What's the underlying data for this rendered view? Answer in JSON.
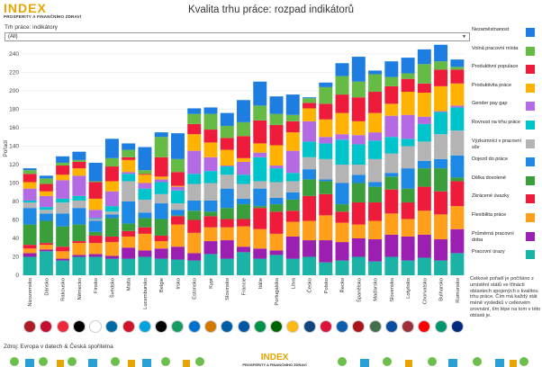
{
  "brand": {
    "logo_word": "INDEX",
    "logo_sub": "PROSPERITY A FINANČNÍHO ZDRAVÍ"
  },
  "title": "Kvalita trhu práce: rozpad indikátorů",
  "filter": {
    "label": "Trh práce: indikátory",
    "value": "(All)"
  },
  "source": "Zdroj: Evropa v datech & Česká spořitelna",
  "note": "Celkové pořadí je počítáno z umístění států ve třinácti oblastech spojených s kvalitou trhu práce. Čím má každý stát méně výsledků v celkovém srovnání, tím lépe na tom v této oblasti je.",
  "icons": {
    "logo": "index-logo",
    "dropdown": "chevron-down-icon",
    "footer_deco": "trees-and-houses-decoration"
  },
  "legend_layout_order": [
    "Nezaměstnanost",
    "Volná pracovní místa",
    "Produktivní populace",
    "Produktivita práce",
    "Gender pay gap",
    "Rovnost na trhu práce",
    "Výzkumníci v pracovní síle",
    "Dojezd do práce",
    "Délka dovolené",
    "Zkrácené úvazky",
    "Flexibilita práce",
    "Průměrná pracovní doba",
    "Pracovní úrazy"
  ],
  "chart_data": {
    "type": "bar",
    "stacked": true,
    "ylabel": "Pořadí",
    "ylim": [
      0,
      240
    ],
    "yticks": [
      0,
      20,
      40,
      60,
      80,
      100,
      120,
      140,
      160,
      180,
      200,
      220,
      240
    ],
    "grid": true,
    "legend_position": "right",
    "categories": [
      "Nizozemsko",
      "Dánsko",
      "Rakousko",
      "Německo",
      "Finsko",
      "Švédsko",
      "Malta",
      "Lucembursko",
      "Belgie",
      "Irsko",
      "Estonsko",
      "Kypr",
      "Slovinsko",
      "Francie",
      "Itálie",
      "Portugalsko",
      "Litva",
      "Česko",
      "Polsko",
      "Řecko",
      "Španělsko",
      "Maďarsko",
      "Slovensko",
      "Lotyšsko",
      "Chorvatsko",
      "Bulharsko",
      "Rumunsko"
    ],
    "series": [
      {
        "name": "Pracovní úrazy",
        "color": "#1ab3a6",
        "values": [
          20,
          26,
          16,
          20,
          20,
          18,
          18,
          20,
          18,
          17,
          16,
          23,
          18,
          25,
          18,
          22,
          18,
          20,
          14,
          16,
          20,
          15,
          20,
          16,
          19,
          16,
          24
        ]
      },
      {
        "name": "Průměrná pracovní doba",
        "color": "#9b1fb1",
        "values": [
          4,
          2,
          2,
          2,
          3,
          3,
          12,
          7,
          11,
          14,
          8,
          14,
          20,
          6,
          11,
          5,
          24,
          18,
          24,
          20,
          20,
          24,
          24,
          26,
          25,
          23,
          26
        ]
      },
      {
        "name": "Flexibilita práce",
        "color": "#ff9f1a",
        "values": [
          5,
          5,
          8,
          13,
          12,
          15,
          12,
          18,
          8,
          24,
          22,
          15,
          14,
          22,
          21,
          18,
          16,
          21,
          27,
          21,
          15,
          20,
          23,
          19,
          26,
          27,
          25
        ]
      },
      {
        "name": "Zkrácené úvazky",
        "color": "#ee1c3a",
        "values": [
          4,
          2,
          5,
          2,
          8,
          6,
          6,
          7,
          6,
          9,
          14,
          12,
          9,
          8,
          23,
          24,
          12,
          27,
          23,
          12,
          24,
          20,
          26,
          18,
          26,
          25,
          27
        ]
      },
      {
        "name": "Délka dovolené",
        "color": "#3a9f3b",
        "values": [
          22,
          24,
          22,
          18,
          4,
          20,
          8,
          10,
          18,
          1,
          10,
          5,
          12,
          16,
          2,
          8,
          12,
          18,
          14,
          8,
          21,
          17,
          14,
          15,
          20,
          25,
          4
        ]
      },
      {
        "name": "Dojezd do práce",
        "color": "#1e88e5",
        "values": [
          18,
          8,
          14,
          18,
          12,
          4,
          24,
          6,
          17,
          6,
          11,
          12,
          21,
          6,
          19,
          7,
          8,
          11,
          2,
          23,
          9,
          5,
          4,
          22,
          8,
          10,
          24
        ]
      },
      {
        "name": "Výzkumníci v pracovní síle",
        "color": "#b4b4b4",
        "values": [
          6,
          4,
          12,
          8,
          2,
          3,
          22,
          14,
          10,
          7,
          18,
          19,
          15,
          16,
          8,
          17,
          12,
          13,
          22,
          20,
          11,
          25,
          21,
          24,
          21,
          27,
          27
        ]
      },
      {
        "name": "Rovnost na trhu práce",
        "color": "#00c4cc",
        "values": [
          2,
          3,
          4,
          5,
          1,
          6,
          8,
          12,
          13,
          14,
          11,
          13,
          9,
          10,
          26,
          15,
          9,
          17,
          17,
          27,
          22,
          20,
          18,
          8,
          19,
          24,
          25
        ]
      },
      {
        "name": "Gender pay gap",
        "color": "#b36ae2",
        "values": [
          13,
          12,
          20,
          22,
          9,
          16,
          2,
          6,
          3,
          4,
          25,
          15,
          1,
          14,
          5,
          3,
          24,
          22,
          7,
          6,
          10,
          9,
          23,
          26,
          8,
          1,
          2
        ]
      },
      {
        "name": "Produktivita práce",
        "color": "#ffb300",
        "values": [
          7,
          5,
          6,
          8,
          12,
          11,
          13,
          9,
          3,
          1,
          18,
          16,
          17,
          4,
          10,
          22,
          20,
          14,
          19,
          23,
          15,
          21,
          13,
          25,
          26,
          27,
          24
        ]
      },
      {
        "name": "Produktivní populace",
        "color": "#ee1c3a",
        "values": [
          9,
          8,
          10,
          7,
          18,
          16,
          3,
          1,
          21,
          15,
          11,
          14,
          13,
          24,
          25,
          22,
          12,
          6,
          17,
          20,
          26,
          23,
          19,
          14,
          10,
          18,
          15
        ]
      },
      {
        "name": "Volná pracovní místa",
        "color": "#66bb44",
        "values": [
          4,
          6,
          3,
          2,
          1,
          9,
          8,
          4,
          22,
          14,
          11,
          17,
          13,
          15,
          16,
          12,
          7,
          5,
          18,
          20,
          17,
          19,
          10,
          6,
          21,
          9,
          3
        ]
      },
      {
        "name": "Nezaměstnanost",
        "color": "#1e7de0",
        "values": [
          2,
          3,
          7,
          9,
          20,
          21,
          7,
          25,
          5,
          28,
          6,
          7,
          14,
          24,
          26,
          19,
          22,
          1,
          5,
          14,
          27,
          4,
          17,
          17,
          16,
          18,
          8
        ]
      }
    ]
  }
}
